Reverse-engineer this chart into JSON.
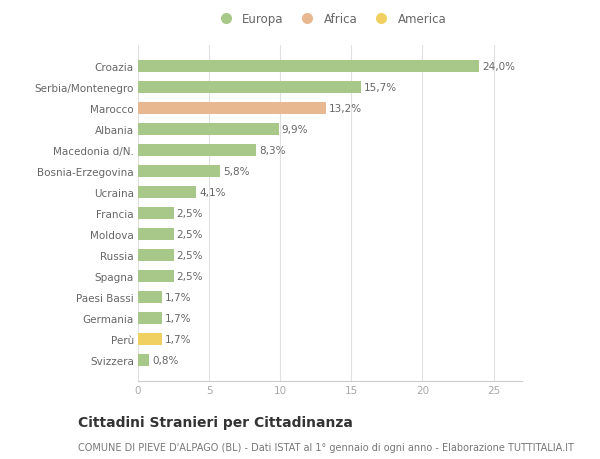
{
  "categories": [
    "Svizzera",
    "Perù",
    "Germania",
    "Paesi Bassi",
    "Spagna",
    "Russia",
    "Moldova",
    "Francia",
    "Ucraina",
    "Bosnia-Erzegovina",
    "Macedonia d/N.",
    "Albania",
    "Marocco",
    "Serbia/Montenegro",
    "Croazia"
  ],
  "values": [
    0.8,
    1.7,
    1.7,
    1.7,
    2.5,
    2.5,
    2.5,
    2.5,
    4.1,
    5.8,
    8.3,
    9.9,
    13.2,
    15.7,
    24.0
  ],
  "continents": [
    "Europa",
    "America",
    "Europa",
    "Europa",
    "Europa",
    "Europa",
    "Europa",
    "Europa",
    "Europa",
    "Europa",
    "Europa",
    "Europa",
    "Africa",
    "Europa",
    "Europa"
  ],
  "colors": {
    "Europa": "#a8c88a",
    "Africa": "#e8b890",
    "America": "#f0d060"
  },
  "legend_labels": [
    "Europa",
    "Africa",
    "America"
  ],
  "legend_colors": [
    "#a8c88a",
    "#e8b890",
    "#f0d060"
  ],
  "title": "Cittadini Stranieri per Cittadinanza",
  "subtitle": "COMUNE DI PIEVE D'ALPAGO (BL) - Dati ISTAT al 1° gennaio di ogni anno - Elaborazione TUTTITALIA.IT",
  "xlim": [
    0,
    27
  ],
  "xticks": [
    0,
    5,
    10,
    15,
    20,
    25
  ],
  "background_color": "#ffffff",
  "grid_color": "#e0e0e0",
  "bar_height": 0.55,
  "title_fontsize": 10,
  "subtitle_fontsize": 7,
  "label_fontsize": 7.5,
  "tick_fontsize": 7.5,
  "legend_fontsize": 8.5
}
